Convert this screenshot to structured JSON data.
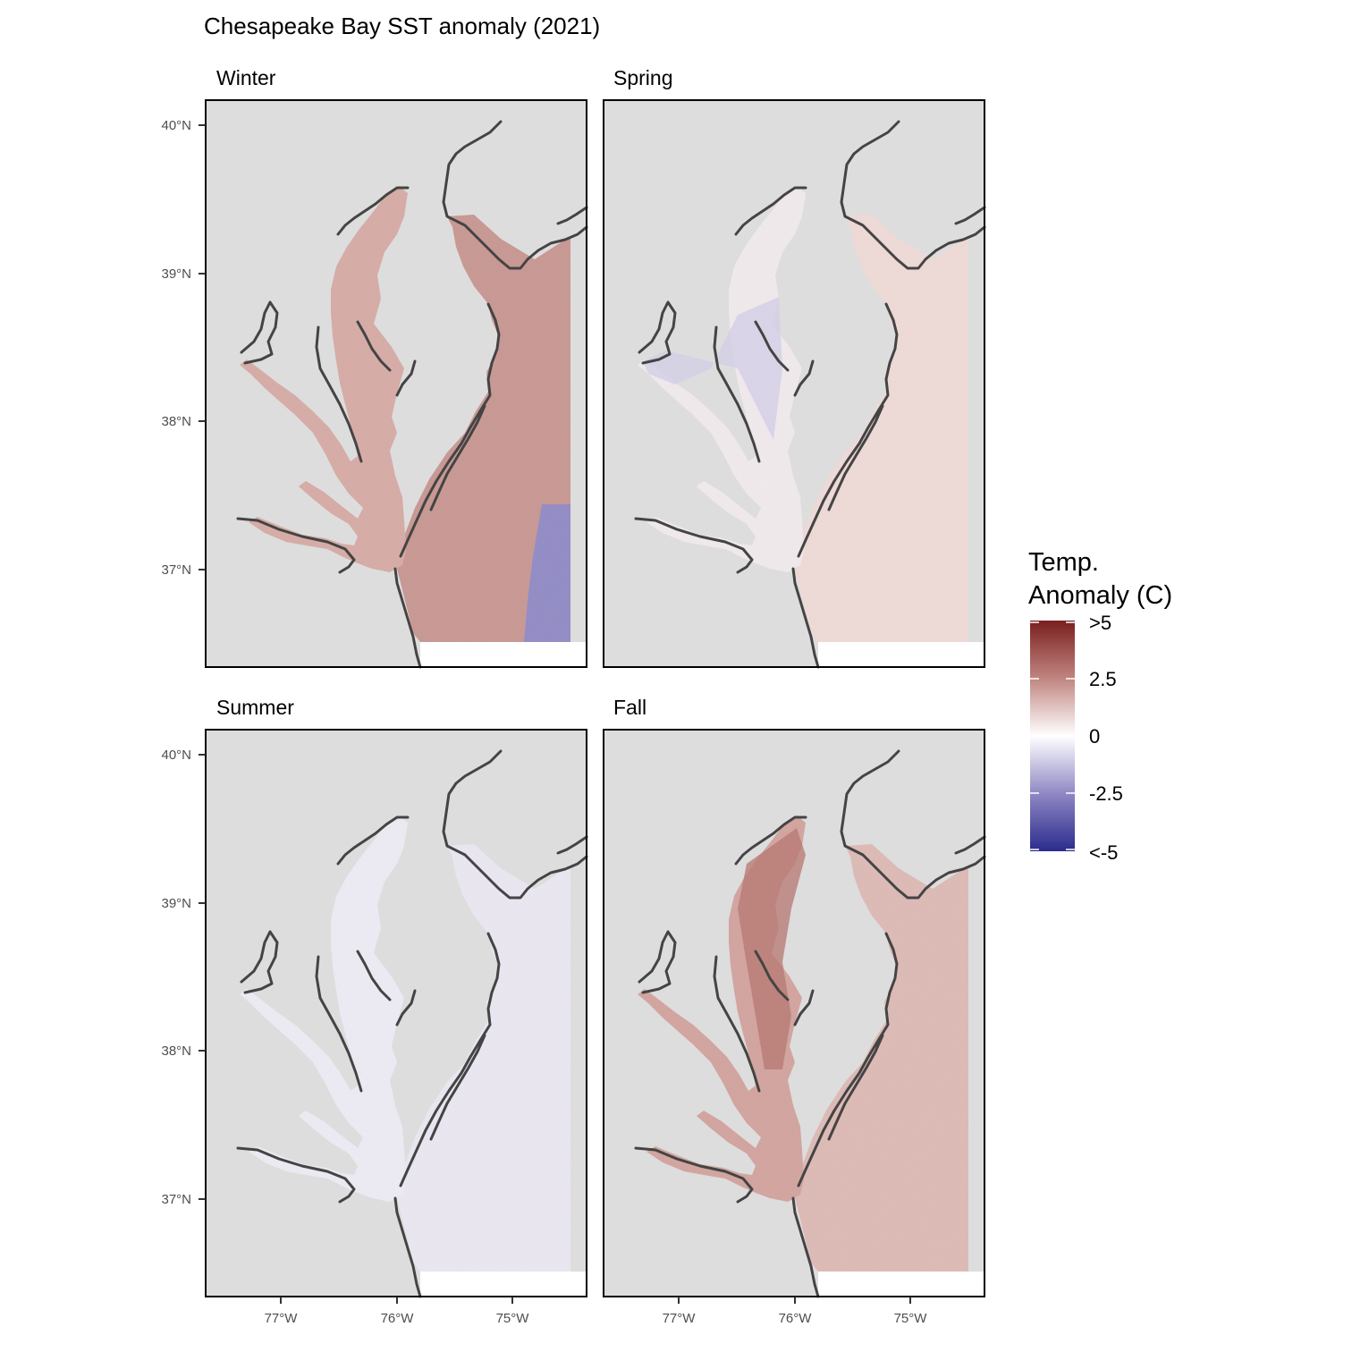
{
  "title": "Chesapeake Bay SST anomaly (2021)",
  "colors": {
    "panel_background": "#dddddd",
    "coastline": "#444444",
    "anomaly_low": "#2b2b8c",
    "anomaly_zero": "#ffffff",
    "anomaly_high": "#7a1f1f"
  },
  "axes": {
    "x_ticks": [
      "77°W",
      "76°W",
      "75°W"
    ],
    "y_ticks": [
      "40°N",
      "39°N",
      "38°N",
      "37°N"
    ]
  },
  "panels": [
    {
      "label": "Winter"
    },
    {
      "label": "Spring"
    },
    {
      "label": "Summer"
    },
    {
      "label": "Fall"
    }
  ],
  "legend": {
    "title_line1": "Temp.",
    "title_line2": "Anomaly (C)",
    "labels": [
      ">5",
      "2.5",
      "0",
      "-2.5",
      "<-5"
    ]
  },
  "chart_data": {
    "type": "heatmap",
    "title": "Chesapeake Bay SST anomaly (2021)",
    "xlabel": "",
    "ylabel": "",
    "facets": [
      "Winter",
      "Spring",
      "Summer",
      "Fall"
    ],
    "xlim": [
      -77.6,
      -74.3
    ],
    "ylim": [
      36.33,
      40.18
    ],
    "x_ticks": [
      -77,
      -76,
      -75
    ],
    "y_ticks": [
      40,
      39,
      38,
      37
    ],
    "colorbar": {
      "min": -5,
      "max": 5,
      "ticks": [
        5,
        2.5,
        0,
        -2.5,
        -5
      ]
    },
    "approx_anomaly_C": {
      "Winter": {
        "ocean": 2.6,
        "bay": 1.8,
        "southeast_ocean": -3.0
      },
      "Spring": {
        "ocean": 0.7,
        "bay": 0.0,
        "upper_bay_tributaries": -1.3
      },
      "Summer": {
        "ocean": -0.5,
        "bay": -0.3,
        "tributaries": 0.6
      },
      "Fall": {
        "ocean": 1.7,
        "bay": 2.2,
        "upper_bay": 3.0
      }
    }
  }
}
